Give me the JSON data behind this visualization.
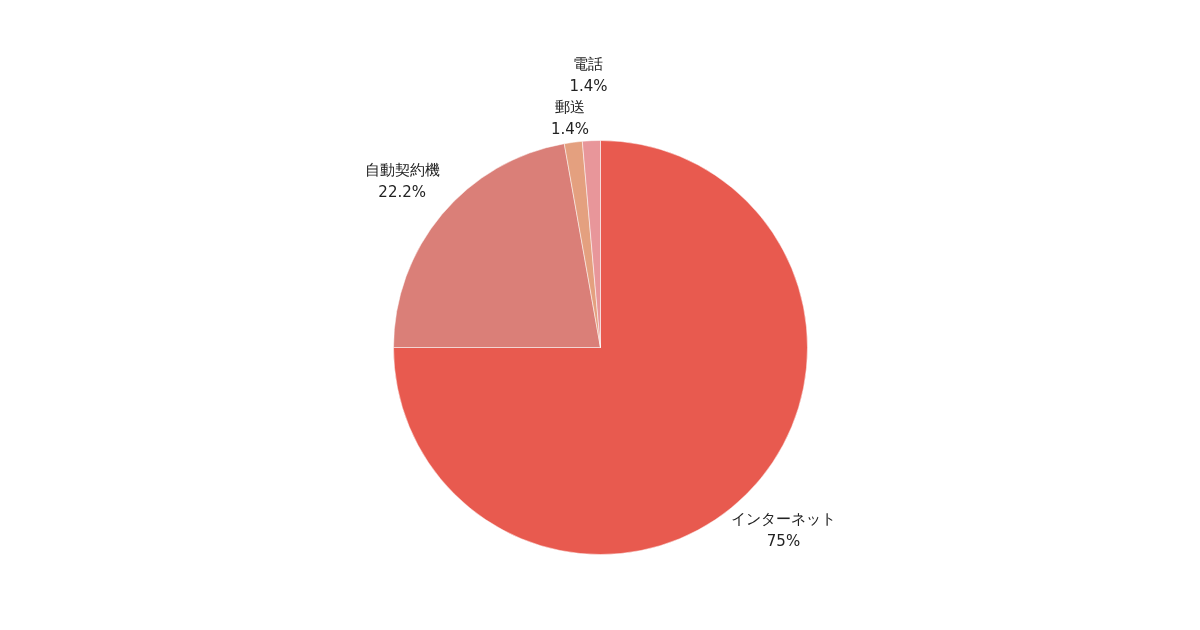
{
  "chart_data": {
    "type": "pie",
    "categories": [
      "インターネット",
      "自動契約機",
      "郵送",
      "電話"
    ],
    "values": [
      75,
      22.2,
      1.4,
      1.4
    ],
    "value_labels": [
      "75%",
      "22.2%",
      "1.4%",
      "1.4%"
    ],
    "colors": [
      "#e85a4f",
      "#da7f78",
      "#e4a07f",
      "#e8969a"
    ],
    "legend": false
  }
}
